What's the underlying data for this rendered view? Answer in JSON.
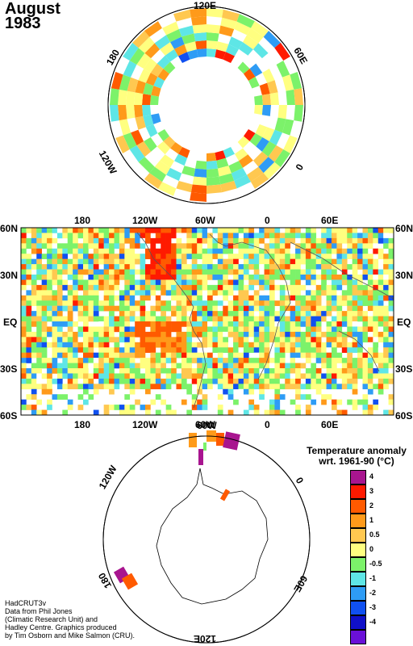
{
  "title": {
    "line1": "August",
    "line2": "1983"
  },
  "north_polar": {
    "labels": {
      "top": "120E",
      "right": "60E",
      "left": "180",
      "bottom_left": "120W",
      "right_low": "0"
    }
  },
  "world_map": {
    "top_lon_labels": [
      "180",
      "120W",
      "60W",
      "0",
      "60E"
    ],
    "bottom_lon_labels": [
      "180",
      "120W",
      "60W",
      "0",
      "60E"
    ],
    "lat_labels": [
      "60N",
      "30N",
      "EQ",
      "30S",
      "60S"
    ]
  },
  "south_polar": {
    "labels": {
      "top_left": "60W",
      "left": "120W",
      "right": "0",
      "bottom_left": "180",
      "bottom": "120E",
      "bottom_right": "60E"
    }
  },
  "legend": {
    "title_line1": "Temperature anomaly",
    "title_line2": "wrt. 1961-90  (°C)",
    "levels": [
      {
        "label": "4",
        "color": "#a8158f"
      },
      {
        "label": "3",
        "color": "#ff1a00"
      },
      {
        "label": "2",
        "color": "#ff5a00"
      },
      {
        "label": "1",
        "color": "#ff9a1a"
      },
      {
        "label": "0.5",
        "color": "#ffc850"
      },
      {
        "label": "0",
        "color": "#ffff80"
      },
      {
        "label": "-0.5",
        "color": "#7cf26a"
      },
      {
        "label": "-1",
        "color": "#5ee6e6"
      },
      {
        "label": "-2",
        "color": "#2e9cf5"
      },
      {
        "label": "-3",
        "color": "#1050f0"
      },
      {
        "label": "-4",
        "color": "#1010c8"
      },
      {
        "label": "",
        "color": "#6a10d8"
      }
    ]
  },
  "credits": {
    "line1": "HadCRUT3v",
    "line2": "Data from Phil Jones",
    "line3": "(Climatic Research Unit) and",
    "line4": "Hadley Centre.  Graphics produced",
    "line5": "by Tim Osborn and Mike Salmon (CRU)."
  }
}
